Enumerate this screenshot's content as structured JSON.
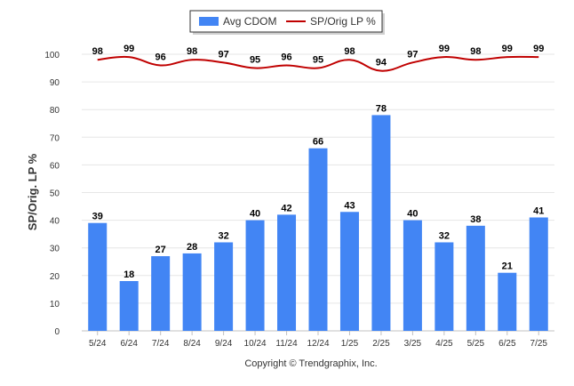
{
  "chart_data": {
    "type": "bar",
    "categories": [
      "5/24",
      "6/24",
      "7/24",
      "8/24",
      "9/24",
      "10/24",
      "11/24",
      "12/24",
      "1/25",
      "2/25",
      "3/25",
      "4/25",
      "5/25",
      "6/25",
      "7/25"
    ],
    "series": [
      {
        "name": "Avg CDOM",
        "kind": "bar",
        "color": "#4285f4",
        "values": [
          39,
          18,
          27,
          28,
          32,
          40,
          42,
          66,
          43,
          78,
          40,
          32,
          38,
          21,
          41
        ]
      },
      {
        "name": "SP/Orig LP %",
        "kind": "line",
        "color": "#c00000",
        "values": [
          98,
          99,
          96,
          98,
          97,
          95,
          96,
          95,
          98,
          94,
          97,
          99,
          98,
          99,
          99
        ]
      }
    ],
    "ylabel": "SP/Orig. LP %",
    "ylim": [
      0,
      100
    ],
    "yticks": [
      0,
      10,
      20,
      30,
      40,
      50,
      60,
      70,
      80,
      90,
      100
    ],
    "grid": true,
    "legend": "top-center"
  },
  "footer": {
    "credit": "Copyright © Trendgraphix, Inc."
  }
}
